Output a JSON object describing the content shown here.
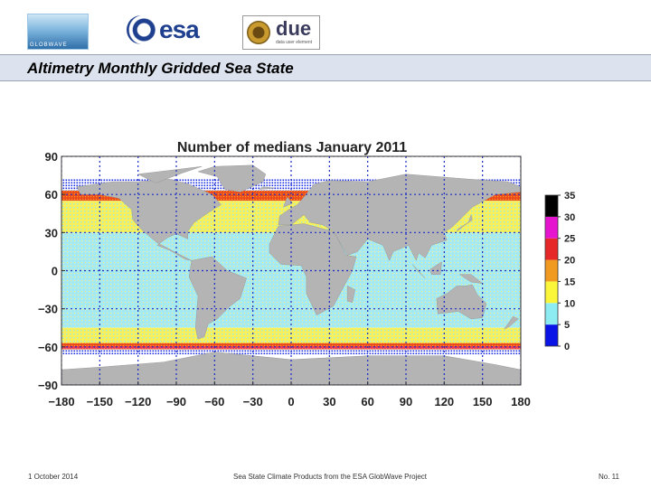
{
  "header": {
    "logos": [
      {
        "name": "globwave-logo",
        "text": "GLOBWAVE"
      },
      {
        "name": "esa-logo",
        "text": "esa"
      },
      {
        "name": "due-logo",
        "text": "due",
        "subtext": "data user element"
      }
    ],
    "slide_title": "Altimetry Monthly Gridded Sea State"
  },
  "chart_data": {
    "type": "heatmap",
    "title": "Number of medians  January 2011",
    "xlabel": "",
    "ylabel": "",
    "xlim": [
      -180,
      180
    ],
    "ylim": [
      -90,
      90
    ],
    "x_ticks": [
      -180,
      -150,
      -120,
      -90,
      -60,
      -30,
      0,
      30,
      60,
      90,
      120,
      150,
      180
    ],
    "y_ticks": [
      90,
      60,
      30,
      0,
      -30,
      -60,
      -90
    ],
    "x_tick_labels": [
      "−180",
      "−150",
      "−120",
      "−90",
      "−60",
      "−30",
      "0",
      "30",
      "60",
      "90",
      "120",
      "150",
      "180"
    ],
    "y_tick_labels": [
      "90",
      "60",
      "30",
      "0",
      "−30",
      "−60",
      "−90"
    ],
    "grid": true,
    "colorbar": {
      "ticks": [
        0,
        5,
        10,
        15,
        20,
        25,
        30,
        35
      ],
      "bands": [
        {
          "min": 0,
          "max": 5,
          "color": "#0a14e6"
        },
        {
          "min": 5,
          "max": 10,
          "color": "#8cecf2"
        },
        {
          "min": 10,
          "max": 15,
          "color": "#fbf63a"
        },
        {
          "min": 15,
          "max": 20,
          "color": "#f09a22"
        },
        {
          "min": 20,
          "max": 25,
          "color": "#e62828"
        },
        {
          "min": 25,
          "max": 30,
          "color": "#e414cf"
        },
        {
          "min": 30,
          "max": 35,
          "color": "#000000"
        }
      ]
    },
    "latitude_bands": [
      {
        "lat_from": 63,
        "lat_to": 72,
        "value_range": "0-5"
      },
      {
        "lat_from": 55,
        "lat_to": 63,
        "value_range": "10-25"
      },
      {
        "lat_from": 30,
        "lat_to": 55,
        "value_range": "10-15"
      },
      {
        "lat_from": 15,
        "lat_to": 30,
        "value_range": "5-15"
      },
      {
        "lat_from": -30,
        "lat_to": 15,
        "value_range": "5-10"
      },
      {
        "lat_from": -45,
        "lat_to": -30,
        "value_range": "5-15"
      },
      {
        "lat_from": -57,
        "lat_to": -45,
        "value_range": "10-15"
      },
      {
        "lat_from": -62,
        "lat_to": -57,
        "value_range": "15-35"
      },
      {
        "lat_from": -66,
        "lat_to": -62,
        "value_range": "0-5"
      }
    ],
    "land_color": "#b4b4b4",
    "ocean_no_data_color": "#ffffff"
  },
  "footer": {
    "date": "1 October 2014",
    "caption": "Sea State Climate Products from the ESA GlobWave Project",
    "page": "No. 11"
  }
}
